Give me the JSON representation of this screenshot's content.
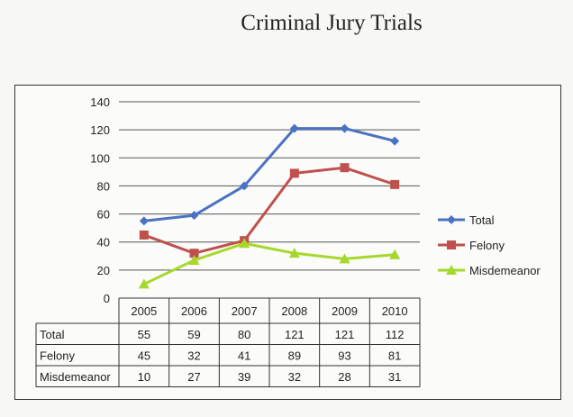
{
  "title": "Criminal Jury Trials",
  "chart_data": {
    "type": "line",
    "title": "Criminal Jury Trials",
    "categories": [
      "2005",
      "2006",
      "2007",
      "2008",
      "2009",
      "2010"
    ],
    "series": [
      {
        "name": "Total",
        "values": [
          55,
          59,
          80,
          121,
          121,
          112
        ],
        "color": "#4a72c4",
        "marker": "diamond"
      },
      {
        "name": "Felony",
        "values": [
          45,
          32,
          41,
          89,
          93,
          81
        ],
        "color": "#c0504d",
        "marker": "square"
      },
      {
        "name": "Misdemeanor",
        "values": [
          10,
          27,
          39,
          32,
          28,
          31
        ],
        "color": "#a6d82c",
        "marker": "triangle"
      }
    ],
    "yticks": [
      0,
      20,
      40,
      60,
      80,
      100,
      120,
      140
    ],
    "ylim": [
      0,
      140
    ],
    "grid": true,
    "legend": "right",
    "data_table": true,
    "xlabel": "",
    "ylabel": ""
  }
}
